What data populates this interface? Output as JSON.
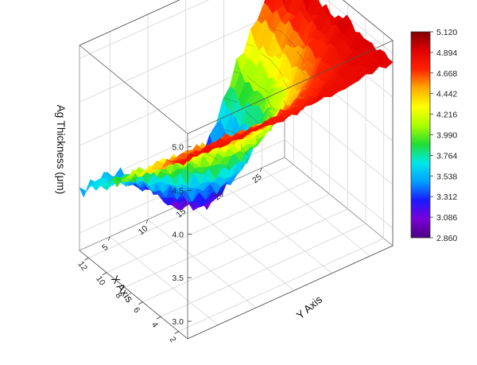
{
  "chart_data": {
    "type": "surface3d",
    "title": "",
    "zlabel": "Ag Thickness (μm)",
    "xlabel": "X Axis",
    "ylabel": "Y Axis",
    "z_ticks": [
      "3.0",
      "3.5",
      "4.0",
      "4.5",
      "5.0"
    ],
    "x_ticks": [
      "2",
      "4",
      "6",
      "8",
      "10",
      "12"
    ],
    "y_ticks": [
      "5",
      "10",
      "15",
      "20",
      "25"
    ],
    "xlim": [
      1,
      13
    ],
    "ylim": [
      1,
      28
    ],
    "zlim": [
      2.86,
      5.12
    ],
    "colorbar": {
      "labels": [
        "5.120",
        "4.894",
        "4.668",
        "4.442",
        "4.216",
        "3.990",
        "3.764",
        "3.538",
        "3.312",
        "3.086",
        "2.860"
      ],
      "min": 2.86,
      "max": 5.12,
      "colors": [
        "#4b0082",
        "#7a00d8",
        "#1a1aff",
        "#00a0ff",
        "#00e8e8",
        "#22dd33",
        "#aaff00",
        "#ffff00",
        "#ffaa00",
        "#ff2200",
        "#e00000",
        "#800000"
      ]
    },
    "corners": {
      "x_min_y_min": 4.85,
      "x_min_y_max": 4.9,
      "x_max_y_min": 3.58,
      "x_max_y_max": 5.12,
      "minimum_near": {
        "x": 11,
        "y": 15,
        "z": 2.86
      }
    },
    "grid": true
  }
}
